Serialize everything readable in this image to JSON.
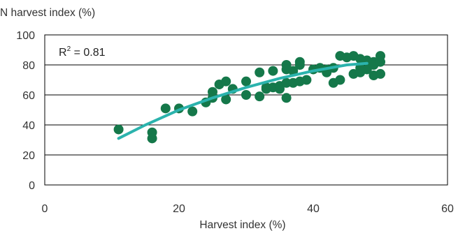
{
  "chart_data": {
    "type": "scatter",
    "title": "",
    "xlabel": "Harvest index (%)",
    "ylabel": "N harvest index (%)",
    "xlim": [
      0,
      60
    ],
    "ylim": [
      0,
      100
    ],
    "x_ticks": [
      0,
      20,
      40,
      60
    ],
    "y_ticks": [
      0,
      20,
      40,
      60,
      80,
      100
    ],
    "grid": "horizontal",
    "annotation": {
      "base": "R",
      "sup": "2",
      "rest": " = 0.81"
    },
    "colors": {
      "points": "#15784a",
      "trend": "#2bb3ad",
      "grid": "#000000"
    },
    "points": [
      [
        11,
        37
      ],
      [
        16,
        35
      ],
      [
        16,
        31
      ],
      [
        18,
        51
      ],
      [
        20,
        51
      ],
      [
        22,
        49
      ],
      [
        24,
        55
      ],
      [
        25,
        58
      ],
      [
        25,
        62
      ],
      [
        26,
        67
      ],
      [
        27,
        69
      ],
      [
        27,
        57
      ],
      [
        28,
        64
      ],
      [
        30,
        69
      ],
      [
        30,
        60
      ],
      [
        32,
        75
      ],
      [
        32,
        59
      ],
      [
        33,
        64
      ],
      [
        33,
        65
      ],
      [
        34,
        76
      ],
      [
        34,
        65
      ],
      [
        35,
        64
      ],
      [
        35,
        66
      ],
      [
        36,
        80
      ],
      [
        36,
        77
      ],
      [
        36,
        68
      ],
      [
        36,
        58
      ],
      [
        37,
        76
      ],
      [
        37,
        68
      ],
      [
        38,
        82
      ],
      [
        38,
        80
      ],
      [
        38,
        69
      ],
      [
        39,
        70
      ],
      [
        40,
        77
      ],
      [
        41,
        78
      ],
      [
        42,
        75
      ],
      [
        42,
        77
      ],
      [
        43,
        78
      ],
      [
        43,
        68
      ],
      [
        44,
        86
      ],
      [
        44,
        70
      ],
      [
        45,
        85
      ],
      [
        46,
        86
      ],
      [
        46,
        74
      ],
      [
        47,
        84
      ],
      [
        47,
        75
      ],
      [
        47,
        78
      ],
      [
        48,
        83
      ],
      [
        48,
        77
      ],
      [
        49,
        82
      ],
      [
        49,
        80
      ],
      [
        49,
        73
      ],
      [
        50,
        86
      ],
      [
        50,
        82
      ],
      [
        50,
        74
      ]
    ],
    "trendline": {
      "x": [
        11,
        15,
        20,
        25,
        30,
        35,
        40,
        45,
        48
      ],
      "y": [
        31,
        40,
        50,
        58,
        65,
        71,
        76,
        80,
        81
      ]
    }
  }
}
